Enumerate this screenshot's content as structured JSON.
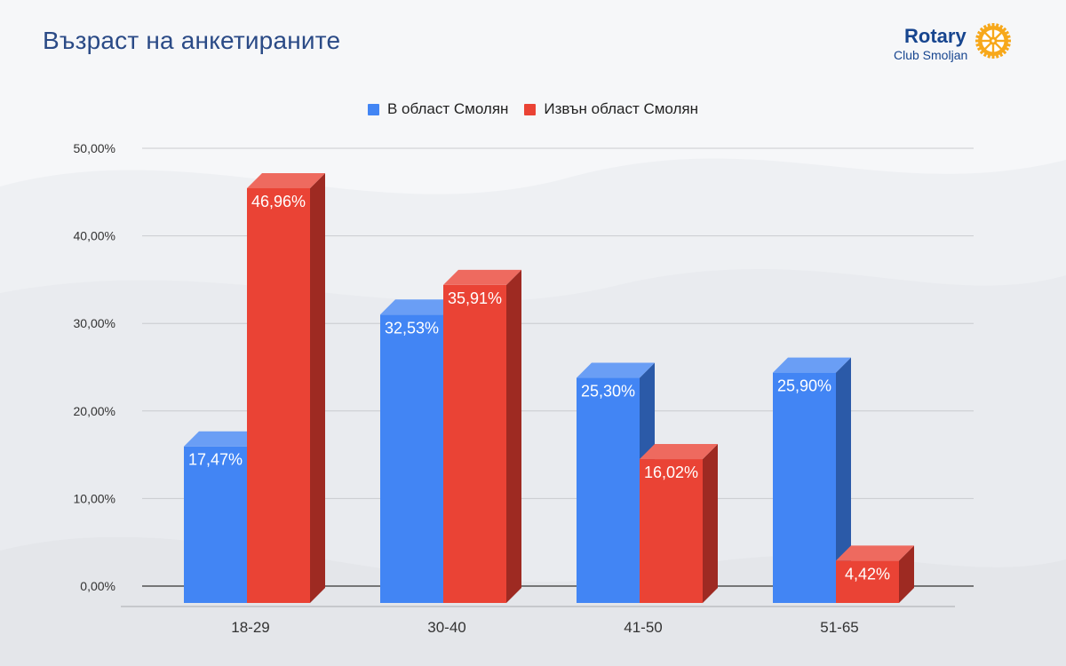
{
  "header": {
    "title": "Възраст на анкетираните"
  },
  "logo": {
    "name": "Rotary",
    "subtitle": "Club Smoljan"
  },
  "colors": {
    "series_1": "#4285f4",
    "series_1_dark": "#2b5aa8",
    "series_1_top": "#6a9ef5",
    "series_2": "#ea4335",
    "series_2_dark": "#9e2a22",
    "series_2_top": "#ee6a5f",
    "logo_gold": "#f7a81b"
  },
  "chart_data": {
    "type": "bar",
    "categories": [
      "18-29",
      "30-40",
      "41-50",
      "51-65"
    ],
    "series": [
      {
        "name": "В област Смолян",
        "values": [
          17.47,
          32.53,
          25.3,
          25.9
        ],
        "labels": [
          "17,47%",
          "32,53%",
          "25,30%",
          "25,90%"
        ]
      },
      {
        "name": "Извън област Смолян",
        "values": [
          46.96,
          35.91,
          16.02,
          4.42
        ],
        "labels": [
          "46,96%",
          "35,91%",
          "16,02%",
          "4,42%"
        ]
      }
    ],
    "ylim": [
      0,
      50
    ],
    "yticks": [
      0,
      10,
      20,
      30,
      40,
      50
    ],
    "ytick_labels": [
      "0,00%",
      "10,00%",
      "20,00%",
      "30,00%",
      "40,00%",
      "50,00%"
    ],
    "grid": true,
    "legend": "top-center",
    "style": "3d-columns"
  }
}
